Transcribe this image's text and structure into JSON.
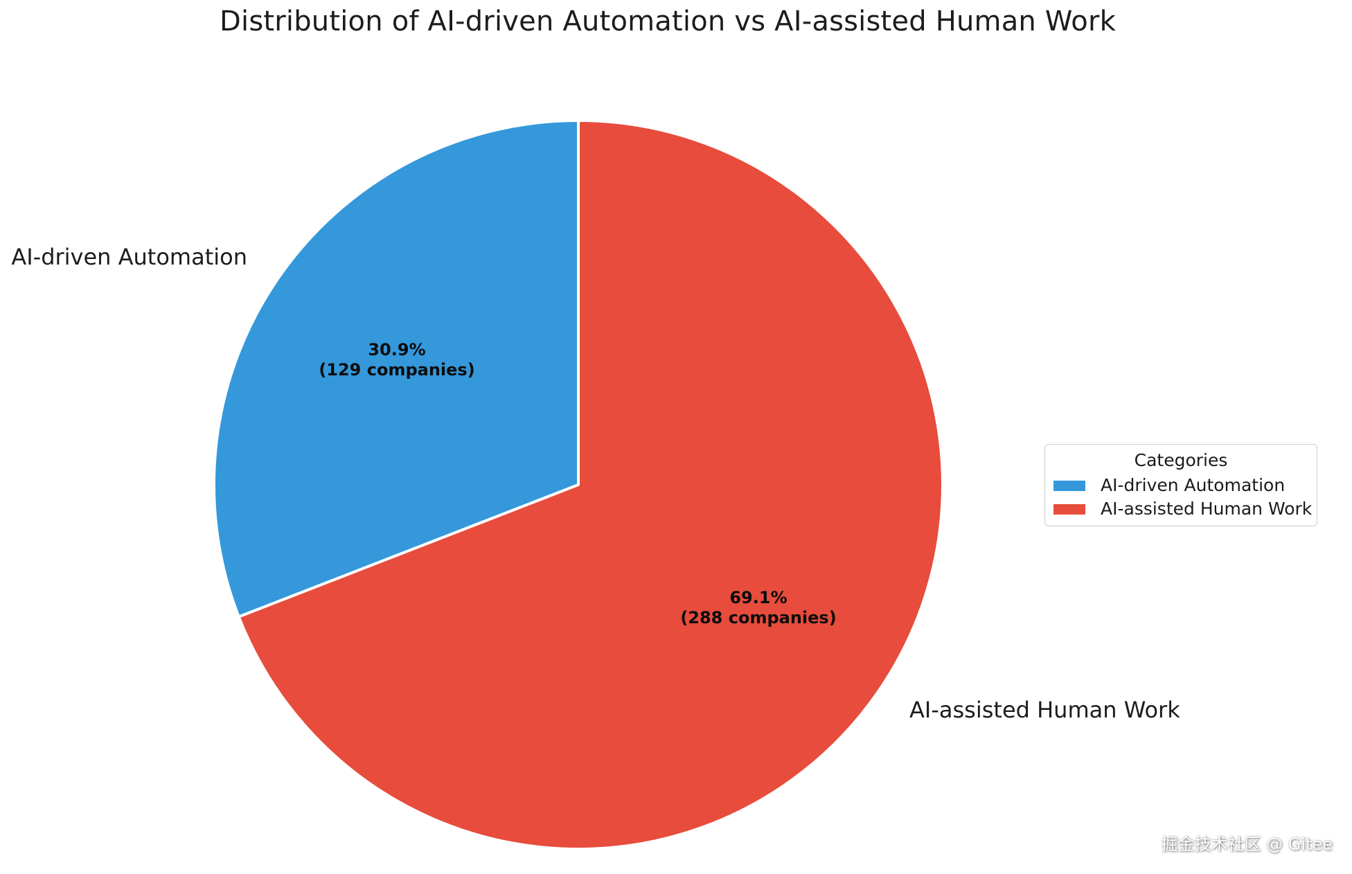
{
  "title": "Distribution of AI-driven Automation vs AI-assisted Human Work",
  "chart_data": {
    "type": "pie",
    "title": "Distribution of AI-driven Automation vs AI-assisted Human Work",
    "start_angle_deg": 90,
    "direction": "counterclockwise",
    "categories": [
      "AI-driven Automation",
      "AI-assisted Human Work"
    ],
    "slices": [
      {
        "label": "AI-driven Automation",
        "companies": 129,
        "percent": 30.9,
        "pct_label": "30.9%",
        "count_label": "(129 companies)",
        "color": "#3498db"
      },
      {
        "label": "AI-assisted Human Work",
        "companies": 288,
        "percent": 69.1,
        "pct_label": "69.1%",
        "count_label": "(288 companies)",
        "color": "#e74c3c"
      }
    ],
    "legend": {
      "title": "Categories",
      "position": "center-right",
      "items": [
        {
          "label": "AI-driven Automation",
          "color": "#3498db"
        },
        {
          "label": "AI-assisted Human Work",
          "color": "#e74c3c"
        }
      ]
    },
    "wedge_edge_color": "#ffffff"
  },
  "watermark": "掘金技术社区 @ Gitee",
  "colors": {
    "blue": "#3498db",
    "red": "#e74c3c",
    "legend_border": "#cccccc",
    "text": "#1c1c1c"
  }
}
